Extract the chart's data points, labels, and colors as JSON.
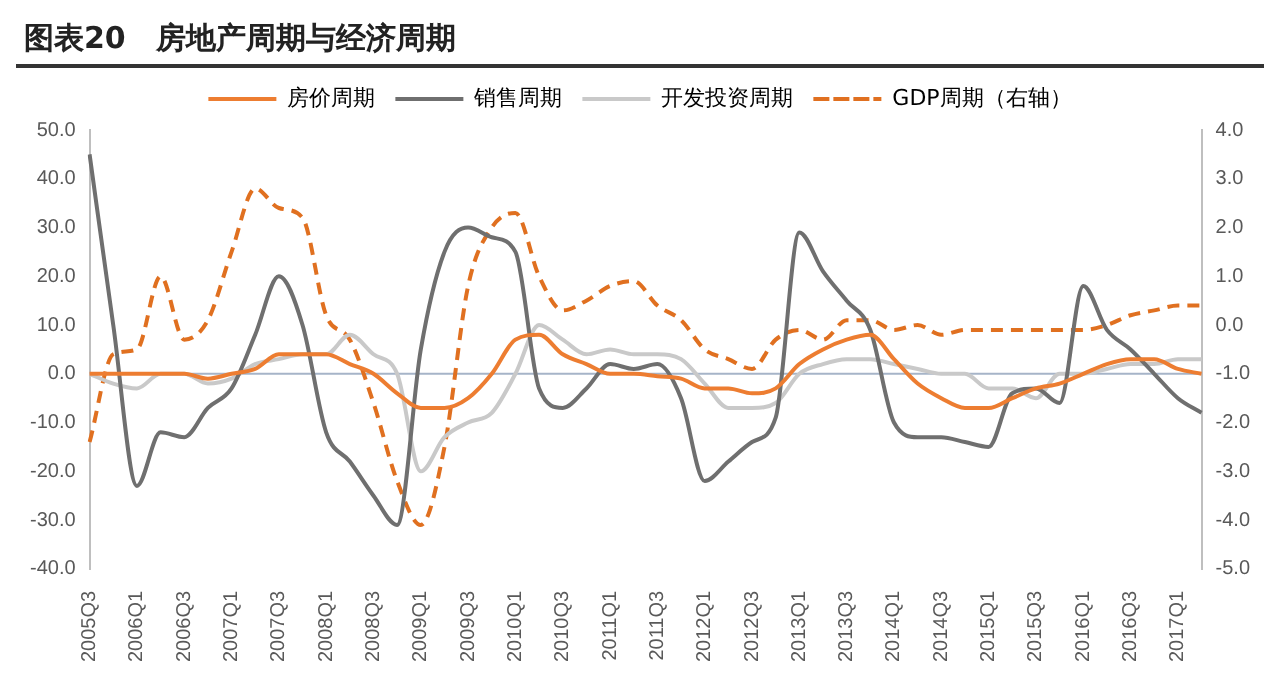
{
  "chart_data": {
    "type": "line",
    "title": "图表20　房地产周期与经济周期",
    "categories": [
      "2005Q3",
      null,
      "2006Q1",
      null,
      "2006Q3",
      null,
      "2007Q1",
      null,
      "2007Q3",
      null,
      "2008Q1",
      null,
      "2008Q3",
      null,
      "2009Q1",
      null,
      "2009Q3",
      null,
      "2010Q1",
      null,
      "2010Q3",
      null,
      "2011Q1",
      null,
      "2011Q3",
      null,
      "2012Q1",
      null,
      "2012Q3",
      null,
      "2013Q1",
      null,
      "2013Q3",
      null,
      "2014Q1",
      null,
      "2014Q3",
      null,
      "2015Q1",
      null,
      "2015Q3",
      null,
      "2016Q1",
      null,
      "2016Q3",
      null,
      "2017Q1",
      null
    ],
    "series": [
      {
        "name": "房价周期",
        "color": "#ed7d31",
        "values": [
          0,
          0,
          0,
          0,
          0,
          -1,
          0,
          1,
          4,
          4,
          4,
          2,
          0,
          -4,
          -7,
          -7,
          -5,
          0,
          7,
          8,
          4,
          2,
          0,
          0,
          -0.5,
          -1,
          -3,
          -3,
          -4,
          -3,
          2,
          5,
          7,
          8,
          3,
          -2,
          -5,
          -7,
          -7,
          -5,
          -3,
          -2,
          0,
          2,
          3,
          3,
          1,
          0
        ]
      },
      {
        "name": "销售周期",
        "color": "#6f6f6f",
        "values": [
          45,
          10,
          -23,
          -12,
          -13,
          -7,
          -3,
          8,
          20,
          10,
          -12,
          -18,
          -25,
          -31,
          5,
          25,
          30,
          28,
          25,
          -3,
          -7,
          -3,
          2,
          1,
          2,
          -5,
          -22,
          -18,
          -14,
          -9,
          29,
          21,
          15,
          9,
          -10,
          -13,
          -13,
          -14,
          -15,
          -4,
          -3,
          -6,
          18,
          9,
          5,
          0,
          -5,
          -8
        ]
      },
      {
        "name": "开发投资周期",
        "color": "#c9c9c9",
        "values": [
          0,
          -2,
          -3,
          0,
          0,
          -2,
          -1,
          2,
          3,
          4,
          4,
          8,
          4,
          0,
          -20,
          -13,
          -10,
          -8,
          0,
          10,
          7,
          4,
          5,
          4,
          4,
          3,
          -2,
          -7,
          -7,
          -6,
          0,
          2,
          3,
          3,
          2,
          1,
          0,
          0,
          -3,
          -3,
          -5,
          0,
          0,
          1,
          2,
          2,
          3,
          3
        ]
      },
      {
        "name": "GDP周期（右轴）",
        "color": "#e07020",
        "axis": "y2",
        "line_style": "dashed",
        "values": [
          -2.4,
          -0.6,
          -0.5,
          1.0,
          -0.3,
          0.1,
          1.5,
          2.8,
          2.4,
          2.2,
          0.2,
          -0.3,
          -1.6,
          -3.2,
          -4.1,
          -2.5,
          0.8,
          2.0,
          2.3,
          1.0,
          0.3,
          0.5,
          0.8,
          0.9,
          0.4,
          0.1,
          -0.5,
          -0.7,
          -0.9,
          -0.3,
          -0.1,
          -0.3,
          0.1,
          0.1,
          -0.1,
          0.0,
          -0.2,
          -0.1,
          -0.1,
          -0.1,
          -0.1,
          -0.1,
          -0.1,
          0.0,
          0.2,
          0.3,
          0.4,
          0.4
        ]
      }
    ],
    "ylim": [
      -40,
      50
    ],
    "yticks": [
      {
        "value": -40,
        "label": "-40.0"
      },
      {
        "value": -30,
        "label": "-30.0"
      },
      {
        "value": -20,
        "label": "-20.0"
      },
      {
        "value": -10,
        "label": "-10.0"
      },
      {
        "value": 0,
        "label": "0.0"
      },
      {
        "value": 10,
        "label": "10.0"
      },
      {
        "value": 20,
        "label": "20.0"
      },
      {
        "value": 30,
        "label": "30.0"
      },
      {
        "value": 40,
        "label": "40.0"
      },
      {
        "value": 50,
        "label": "50.0"
      }
    ],
    "y2lim": [
      -5,
      4
    ],
    "y2ticks": [
      {
        "value": -5,
        "label": "-5.0"
      },
      {
        "value": -4,
        "label": "-4.0"
      },
      {
        "value": -3,
        "label": "-3.0"
      },
      {
        "value": -2,
        "label": "-2.0"
      },
      {
        "value": -1,
        "label": "-1.0"
      },
      {
        "value": 0,
        "label": "0.0"
      },
      {
        "value": 1,
        "label": "1.0"
      },
      {
        "value": 2,
        "label": "2.0"
      },
      {
        "value": 3,
        "label": "3.0"
      },
      {
        "value": 4,
        "label": "4.0"
      }
    ],
    "ref_lines": [
      {
        "axis": "y",
        "value": 0,
        "color": "#a6b4c8"
      }
    ],
    "grid": false,
    "legend": "top",
    "marker": "none"
  }
}
